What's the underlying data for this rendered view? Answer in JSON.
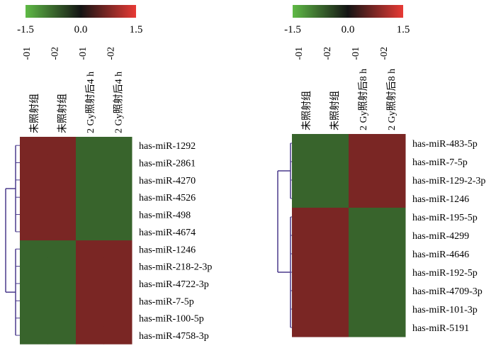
{
  "chart_data": [
    {
      "type": "heatmap",
      "colorbar": {
        "ticks": [
          "-1.5",
          "0.0",
          "1.5"
        ],
        "range": [
          -1.5,
          1.5
        ],
        "low_color": "#5fba46",
        "mid_color": "#141414",
        "high_color": "#e83a35"
      },
      "columns": [
        {
          "label": "未照射组",
          "suffix": "-01"
        },
        {
          "label": "未照射组",
          "suffix": "-02"
        },
        {
          "label": "2 Gy照射后4 h",
          "suffix": "-01"
        },
        {
          "label": "2 Gy照射后4 h",
          "suffix": "-02"
        }
      ],
      "rows": [
        "has-miR-1292",
        "has-miR-2861",
        "has-miR-4270",
        "has-miR-4526",
        "has-miR-498",
        "has-miR-4674",
        "has-miR-1246",
        "has-miR-218-2-3p",
        "has-miR-4722-3p",
        "has-miR-7-5p",
        "has-miR-100-5p",
        "has-miR-4758-3p"
      ],
      "values": [
        [
          1.1,
          1.1,
          -1.1,
          -1.1
        ],
        [
          1.1,
          1.1,
          -1.1,
          -1.1
        ],
        [
          1.1,
          1.1,
          -1.1,
          -1.1
        ],
        [
          1.1,
          1.1,
          -1.1,
          -1.1
        ],
        [
          1.1,
          1.1,
          -1.1,
          -1.1
        ],
        [
          1.1,
          1.1,
          -1.1,
          -1.1
        ],
        [
          -1.1,
          -1.1,
          1.1,
          1.1
        ],
        [
          -1.1,
          -1.1,
          1.1,
          1.1
        ],
        [
          -1.1,
          -1.1,
          1.1,
          1.1
        ],
        [
          -1.1,
          -1.1,
          1.1,
          1.1
        ],
        [
          -1.1,
          -1.1,
          1.1,
          1.1
        ],
        [
          -1.1,
          -1.1,
          1.1,
          1.1
        ]
      ],
      "dendrogram": "rows",
      "dendrogram_color": "#4a3a8c"
    },
    {
      "type": "heatmap",
      "colorbar": {
        "ticks": [
          "-1.5",
          "0.0",
          "1.5"
        ],
        "range": [
          -1.5,
          1.5
        ],
        "low_color": "#5fba46",
        "mid_color": "#141414",
        "high_color": "#e83a35"
      },
      "columns": [
        {
          "label": "未照射组",
          "suffix": "-01"
        },
        {
          "label": "未照射组",
          "suffix": "-02"
        },
        {
          "label": "2 Gy照射后8 h",
          "suffix": "-01"
        },
        {
          "label": "2 Gy照射后8 h",
          "suffix": "-02"
        }
      ],
      "rows": [
        "has-miR-483-5p",
        "has-miR-7-5p",
        "has-miR-129-2-3p",
        "has-miR-1246",
        "has-miR-195-5p",
        "has-miR-4299",
        "has-miR-4646",
        "has-miR-192-5p",
        "has-miR-4709-3p",
        "has-miR-101-3p",
        "has-miR-5191"
      ],
      "values": [
        [
          -1.1,
          -1.1,
          1.1,
          1.1
        ],
        [
          -1.1,
          -1.1,
          1.1,
          1.1
        ],
        [
          -1.1,
          -1.1,
          1.1,
          1.1
        ],
        [
          -1.1,
          -1.1,
          1.1,
          1.1
        ],
        [
          1.1,
          1.1,
          -1.1,
          -1.1
        ],
        [
          1.1,
          1.1,
          -1.1,
          -1.1
        ],
        [
          1.1,
          1.1,
          -1.1,
          -1.1
        ],
        [
          1.1,
          1.1,
          -1.1,
          -1.1
        ],
        [
          1.1,
          1.1,
          -1.1,
          -1.1
        ],
        [
          1.1,
          1.1,
          -1.1,
          -1.1
        ],
        [
          1.1,
          1.1,
          -1.1,
          -1.1
        ]
      ],
      "dendrogram": "rows",
      "dendrogram_color": "#4a3a8c"
    }
  ]
}
